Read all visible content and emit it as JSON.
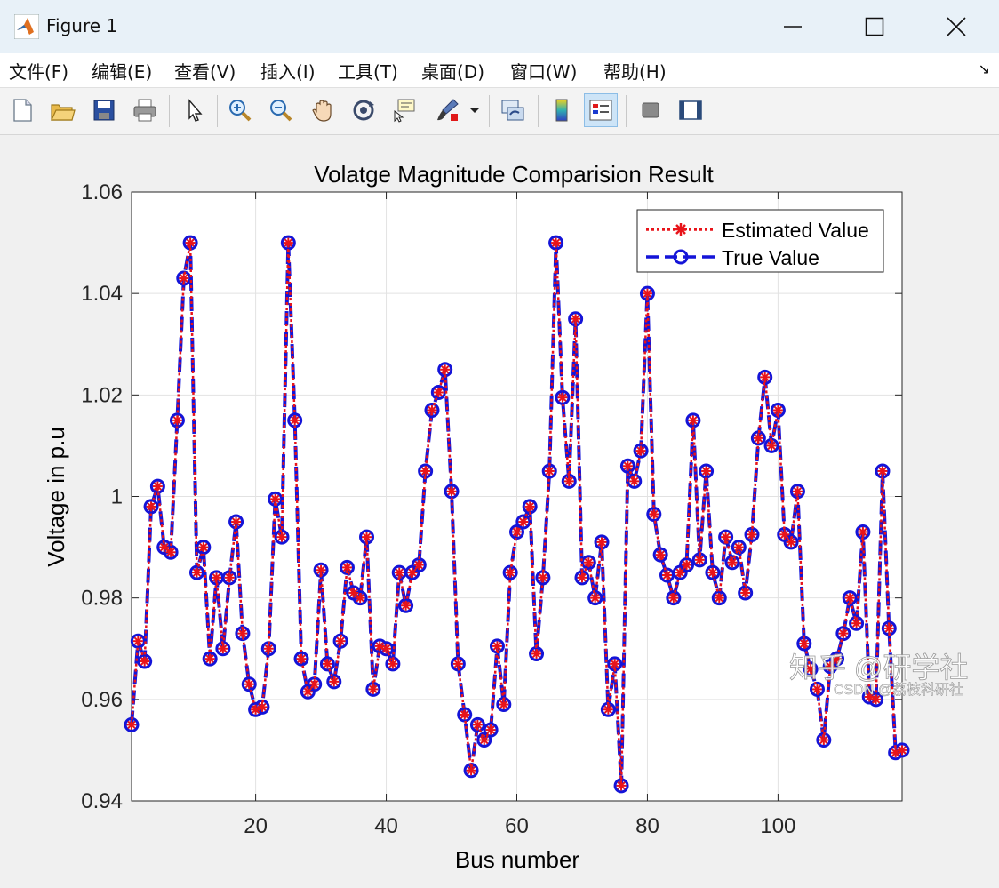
{
  "window": {
    "title": "Figure 1",
    "minimize_label": "minimize",
    "maximize_label": "maximize",
    "close_label": "close"
  },
  "menu": {
    "items": [
      "文件(F)",
      "编辑(E)",
      "查看(V)",
      "插入(I)",
      "工具(T)",
      "桌面(D)",
      "窗口(W)",
      "帮助(H)"
    ]
  },
  "toolbar": {
    "icons": [
      "new-figure-icon",
      "open-file-icon",
      "save-icon",
      "print-icon",
      "pointer-icon",
      "zoom-in-icon",
      "zoom-out-icon",
      "pan-icon",
      "rotate-3d-icon",
      "data-cursor-icon",
      "brush-icon",
      "link-plot-icon",
      "colorbar-icon",
      "legend-icon",
      "hide-plot-tools-icon",
      "show-plot-tools-icon"
    ]
  },
  "watermark": {
    "main": "知乎 @研学社",
    "sub": "CSDN @荔枝科研社"
  },
  "colors": {
    "estimated": "#e8141a",
    "true": "#1414d8"
  },
  "chart_data": {
    "type": "line",
    "title": "Volatge Magnitude Comparision Result",
    "xlabel": "Bus number",
    "ylabel": "Voltage in p.u",
    "xlim": [
      1,
      119
    ],
    "ylim": [
      0.94,
      1.06
    ],
    "xticks": [
      20,
      40,
      60,
      80,
      100
    ],
    "yticks": [
      0.94,
      0.96,
      0.98,
      1,
      1.02,
      1.04,
      1.06
    ],
    "ytick_labels": [
      "0.94",
      "0.96",
      "0.98",
      "1",
      "1.02",
      "1.04",
      "1.06"
    ],
    "grid": true,
    "legend_position": "top-right",
    "x": [
      1,
      2,
      3,
      4,
      5,
      6,
      7,
      8,
      9,
      10,
      11,
      12,
      13,
      14,
      15,
      16,
      17,
      18,
      19,
      20,
      21,
      22,
      23,
      24,
      25,
      26,
      27,
      28,
      29,
      30,
      31,
      32,
      33,
      34,
      35,
      36,
      37,
      38,
      39,
      40,
      41,
      42,
      43,
      44,
      45,
      46,
      47,
      48,
      49,
      50,
      51,
      52,
      53,
      54,
      55,
      56,
      57,
      58,
      59,
      60,
      61,
      62,
      63,
      64,
      65,
      66,
      67,
      68,
      69,
      70,
      71,
      72,
      73,
      74,
      75,
      76,
      77,
      78,
      79,
      80,
      81,
      82,
      83,
      84,
      85,
      86,
      87,
      88,
      89,
      90,
      91,
      92,
      93,
      94,
      95,
      96,
      97,
      98,
      99,
      100,
      101,
      102,
      103,
      104,
      105,
      106,
      107,
      108,
      109,
      110,
      111,
      112,
      113,
      114,
      115,
      116,
      117,
      118,
      119
    ],
    "series": [
      {
        "name": "Estimated Value",
        "values": [
          0.955,
          0.9715,
          0.9675,
          0.998,
          1.002,
          0.99,
          0.989,
          1.015,
          1.043,
          1.05,
          0.985,
          0.99,
          0.968,
          0.984,
          0.97,
          0.984,
          0.995,
          0.973,
          0.963,
          0.958,
          0.9585,
          0.97,
          0.9995,
          0.992,
          1.05,
          1.015,
          0.968,
          0.9615,
          0.963,
          0.9855,
          0.967,
          0.9635,
          0.9715,
          0.986,
          0.981,
          0.98,
          0.992,
          0.962,
          0.9705,
          0.97,
          0.967,
          0.985,
          0.9785,
          0.985,
          0.9865,
          1.005,
          1.017,
          1.0205,
          1.025,
          1.001,
          0.967,
          0.957,
          0.946,
          0.955,
          0.952,
          0.954,
          0.9705,
          0.959,
          0.985,
          0.993,
          0.995,
          0.998,
          0.969,
          0.984,
          1.005,
          1.05,
          1.0195,
          1.003,
          1.035,
          0.984,
          0.987,
          0.98,
          0.991,
          0.958,
          0.967,
          0.943,
          1.006,
          1.003,
          1.009,
          1.04,
          0.9965,
          0.9885,
          0.9845,
          0.98,
          0.985,
          0.9865,
          1.015,
          0.9875,
          1.005,
          0.985,
          0.98,
          0.992,
          0.987,
          0.99,
          0.981,
          0.9925,
          1.0115,
          1.0235,
          1.01,
          1.017,
          0.9925,
          0.991,
          1.001,
          0.971,
          0.966,
          0.962,
          0.952,
          0.9665,
          0.968,
          0.973,
          0.98,
          0.975,
          0.993,
          0.9605,
          0.96,
          1.005,
          0.974,
          0.9495,
          0.95
        ]
      },
      {
        "name": "True Value",
        "values": [
          0.955,
          0.9715,
          0.9675,
          0.998,
          1.002,
          0.99,
          0.989,
          1.015,
          1.043,
          1.05,
          0.985,
          0.99,
          0.968,
          0.984,
          0.97,
          0.984,
          0.995,
          0.973,
          0.963,
          0.958,
          0.9585,
          0.97,
          0.9995,
          0.992,
          1.05,
          1.015,
          0.968,
          0.9615,
          0.963,
          0.9855,
          0.967,
          0.9635,
          0.9715,
          0.986,
          0.981,
          0.98,
          0.992,
          0.962,
          0.9705,
          0.97,
          0.967,
          0.985,
          0.9785,
          0.985,
          0.9865,
          1.005,
          1.017,
          1.0205,
          1.025,
          1.001,
          0.967,
          0.957,
          0.946,
          0.955,
          0.952,
          0.954,
          0.9705,
          0.959,
          0.985,
          0.993,
          0.995,
          0.998,
          0.969,
          0.984,
          1.005,
          1.05,
          1.0195,
          1.003,
          1.035,
          0.984,
          0.987,
          0.98,
          0.991,
          0.958,
          0.967,
          0.943,
          1.006,
          1.003,
          1.009,
          1.04,
          0.9965,
          0.9885,
          0.9845,
          0.98,
          0.985,
          0.9865,
          1.015,
          0.9875,
          1.005,
          0.985,
          0.98,
          0.992,
          0.987,
          0.99,
          0.981,
          0.9925,
          1.0115,
          1.0235,
          1.01,
          1.017,
          0.9925,
          0.991,
          1.001,
          0.971,
          0.966,
          0.962,
          0.952,
          0.9665,
          0.968,
          0.973,
          0.98,
          0.975,
          0.993,
          0.9605,
          0.96,
          1.005,
          0.974,
          0.9495,
          0.95
        ]
      }
    ]
  }
}
